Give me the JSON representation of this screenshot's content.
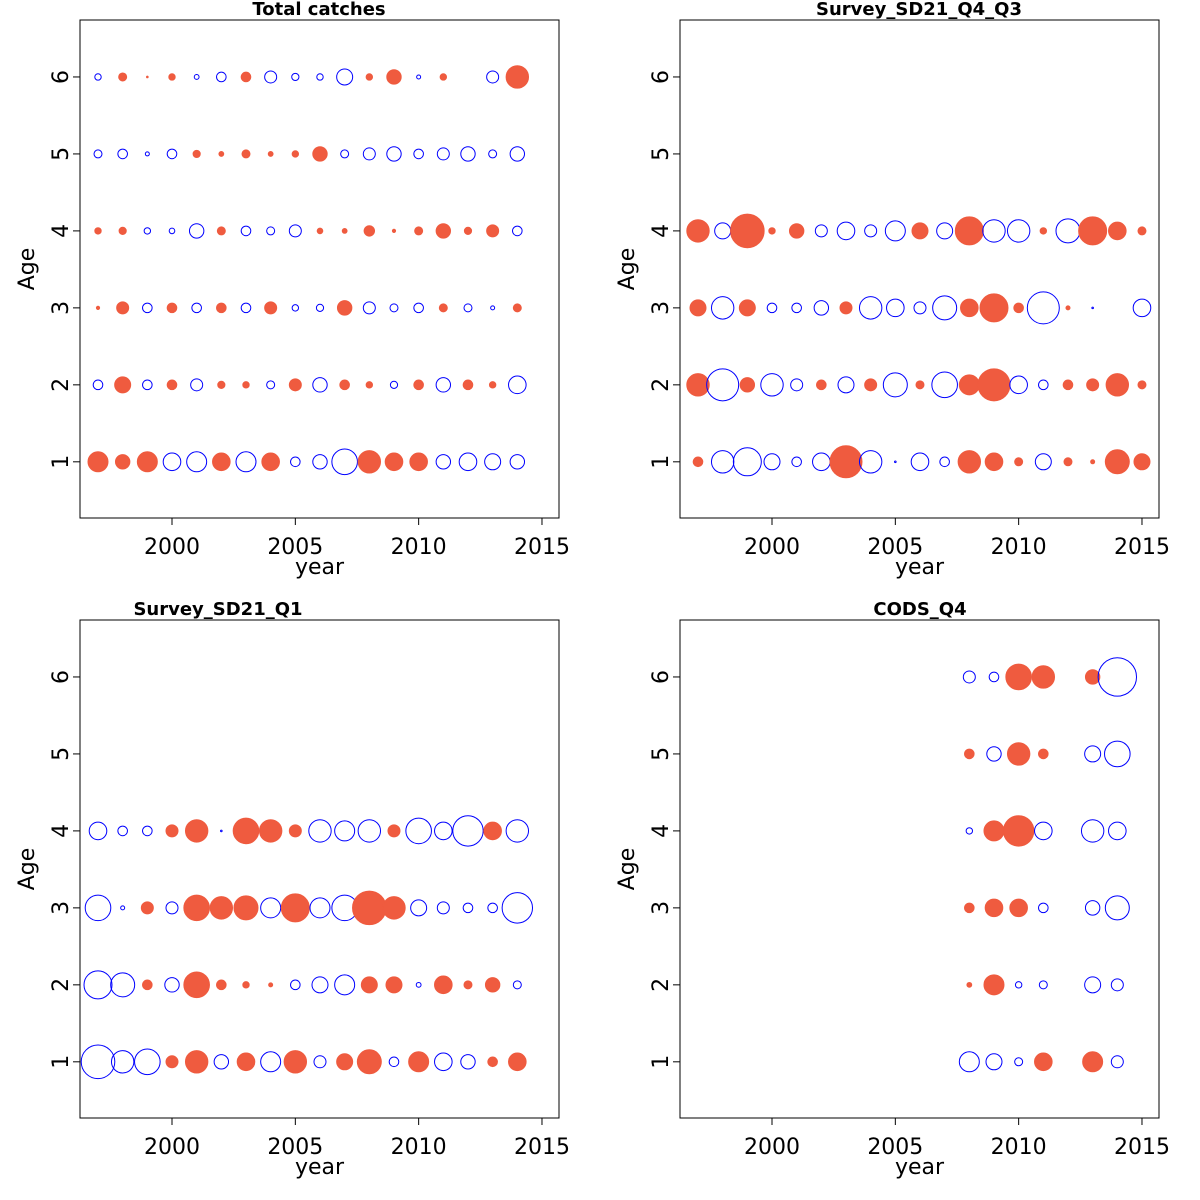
{
  "chart_data": [
    {
      "type": "bubble",
      "title": "Total catches",
      "xlabel": "year",
      "ylabel": "Age",
      "positive_color": "#ef5b3f",
      "negative_color": "#0000ff",
      "xlim": [
        1996.27,
        2015.69
      ],
      "ylim": [
        0.27,
        6.74
      ],
      "xticks": [
        2000,
        2005,
        2010,
        2015
      ],
      "yticks": [
        1,
        2,
        3,
        4,
        5,
        6
      ],
      "x": [
        1997,
        1998,
        1999,
        2000,
        2001,
        2002,
        2003,
        2004,
        2005,
        2006,
        2007,
        2008,
        2009,
        2010,
        2011,
        2012,
        2013,
        2014
      ],
      "y": [
        1,
        2,
        3,
        4,
        5,
        6
      ],
      "values": [
        [
          1.25,
          0.9,
          1.25,
          -1.1,
          -1.25,
          1.1,
          -1.25,
          1.1,
          -0.6,
          -0.9,
          -1.6,
          1.4,
          1.1,
          1.1,
          -0.9,
          -1.1,
          -1.0,
          -0.9
        ],
        [
          -0.6,
          1.0,
          -0.6,
          0.6,
          -0.75,
          0.45,
          0.4,
          -0.5,
          0.75,
          -0.9,
          0.6,
          0.4,
          -0.45,
          0.6,
          -0.9,
          0.6,
          0.4,
          -1.1
        ],
        [
          0.2,
          0.75,
          -0.6,
          0.6,
          -0.6,
          0.6,
          -0.6,
          0.75,
          -0.4,
          -0.45,
          0.9,
          -0.75,
          -0.5,
          -0.6,
          0.5,
          -0.5,
          -0.25,
          0.5
        ],
        [
          0.4,
          0.45,
          -0.4,
          -0.35,
          -0.9,
          0.5,
          -0.6,
          -0.5,
          -0.75,
          0.35,
          0.3,
          0.65,
          0.2,
          0.5,
          0.9,
          0.45,
          0.75,
          -0.6
        ],
        [
          -0.5,
          -0.6,
          -0.25,
          -0.6,
          0.45,
          0.3,
          0.5,
          0.3,
          0.4,
          0.9,
          -0.5,
          -0.75,
          -0.9,
          -0.6,
          -0.75,
          -0.9,
          -0.5,
          -0.9
        ],
        [
          -0.4,
          0.5,
          0.1,
          0.4,
          -0.3,
          -0.6,
          0.6,
          -0.75,
          -0.45,
          -0.4,
          -1.0,
          0.4,
          0.9,
          -0.25,
          0.4,
          null,
          -0.75,
          1.4
        ]
      ]
    },
    {
      "type": "bubble",
      "title": "Survey_SD21_Q4_Q3",
      "xlabel": "year",
      "ylabel": "Age",
      "positive_color": "#ef5b3f",
      "negative_color": "#0000ff",
      "xlim": [
        1996.27,
        2015.69
      ],
      "ylim": [
        0.27,
        6.74
      ],
      "xticks": [
        2000,
        2005,
        2010,
        2015
      ],
      "yticks": [
        1,
        2,
        3,
        4,
        5,
        6
      ],
      "x": [
        1997,
        1998,
        1999,
        2000,
        2001,
        2002,
        2003,
        2004,
        2005,
        2006,
        2007,
        2008,
        2009,
        2010,
        2011,
        2012,
        2013,
        2014,
        2015
      ],
      "y": [
        1,
        2,
        3,
        4
      ],
      "values": [
        [
          0.6,
          -1.4,
          -1.75,
          -1.0,
          -0.6,
          -1.1,
          2.0,
          -1.4,
          -0.1,
          -1.1,
          -0.6,
          1.4,
          1.1,
          0.5,
          -1.0,
          0.5,
          0.25,
          1.5,
          1.0
        ],
        [
          1.4,
          -2.0,
          0.9,
          -1.4,
          -0.75,
          0.6,
          -1.0,
          0.75,
          -1.5,
          0.5,
          -1.6,
          1.25,
          2.0,
          -1.1,
          -0.6,
          0.6,
          0.75,
          1.4,
          0.5
        ],
        [
          1.0,
          -1.4,
          1.0,
          -0.6,
          -0.6,
          -0.9,
          0.75,
          -1.4,
          -1.1,
          -0.75,
          -1.5,
          1.1,
          1.75,
          0.6,
          -2.0,
          0.25,
          -0.1,
          null,
          -1.1
        ],
        [
          1.4,
          -1.0,
          2.1,
          0.4,
          0.9,
          -0.75,
          -1.1,
          -0.75,
          -1.25,
          1.0,
          -1.0,
          1.75,
          -1.4,
          -1.4,
          0.4,
          -1.5,
          1.75,
          1.1,
          0.5
        ]
      ]
    },
    {
      "type": "bubble",
      "title": "Survey_SD21_Q1",
      "xlabel": "year",
      "ylabel": "Age",
      "positive_color": "#ef5b3f",
      "negative_color": "#0000ff",
      "xlim": [
        1996.27,
        2015.69
      ],
      "ylim": [
        0.27,
        6.74
      ],
      "xticks": [
        2000,
        2005,
        2010,
        2015
      ],
      "yticks": [
        1,
        2,
        3,
        4,
        5,
        6
      ],
      "x": [
        1997,
        1998,
        1999,
        2000,
        2001,
        2002,
        2003,
        2004,
        2005,
        2006,
        2007,
        2008,
        2009,
        2010,
        2011,
        2012,
        2013,
        2014
      ],
      "y": [
        1,
        2,
        3,
        4
      ],
      "values": [
        [
          -2.1,
          -1.4,
          -1.6,
          0.75,
          1.4,
          -0.9,
          1.1,
          -1.25,
          1.4,
          -0.75,
          1.0,
          1.5,
          -0.6,
          1.25,
          -1.1,
          -0.9,
          0.6,
          1.1
        ],
        [
          -1.75,
          -1.5,
          0.6,
          -0.9,
          1.6,
          0.6,
          0.4,
          0.25,
          -0.6,
          -1.0,
          -1.25,
          1.0,
          1.0,
          -0.3,
          1.1,
          0.5,
          0.9,
          -0.5
        ],
        [
          -1.6,
          -0.25,
          0.75,
          -0.75,
          1.6,
          1.4,
          1.5,
          -1.25,
          1.75,
          -1.25,
          -1.6,
          2.1,
          1.4,
          -1.0,
          -0.75,
          -0.6,
          -0.6,
          -1.9
        ],
        [
          -1.1,
          -0.6,
          -0.6,
          0.75,
          1.4,
          -0.1,
          1.6,
          1.4,
          0.75,
          -1.4,
          -1.25,
          -1.4,
          0.75,
          -1.6,
          -1.1,
          -1.9,
          1.1,
          -1.4
        ]
      ]
    },
    {
      "type": "bubble",
      "title": "CODS_Q4",
      "xlabel": "year",
      "ylabel": "Age",
      "positive_color": "#ef5b3f",
      "negative_color": "#0000ff",
      "xlim": [
        1996.27,
        2015.69
      ],
      "ylim": [
        0.27,
        6.74
      ],
      "xticks": [
        2000,
        2005,
        2010,
        2015
      ],
      "yticks": [
        1,
        2,
        3,
        4,
        5,
        6
      ],
      "x": [
        2008,
        2009,
        2010,
        2011,
        2013,
        2014
      ],
      "y": [
        1,
        2,
        3,
        4,
        5,
        6
      ],
      "values": [
        [
          -1.25,
          -1.0,
          -0.5,
          1.1,
          1.25,
          -0.75
        ],
        [
          0.3,
          1.25,
          -0.4,
          -0.5,
          -1.0,
          -0.75
        ],
        [
          0.6,
          1.1,
          1.1,
          -0.6,
          -0.9,
          -1.5
        ],
        [
          -0.4,
          1.25,
          1.9,
          -1.1,
          -1.4,
          -1.1
        ],
        [
          0.6,
          -0.9,
          1.4,
          0.6,
          -1.0,
          -1.6
        ],
        [
          -0.75,
          -0.6,
          1.6,
          1.4,
          0.9,
          -2.4
        ]
      ]
    }
  ]
}
